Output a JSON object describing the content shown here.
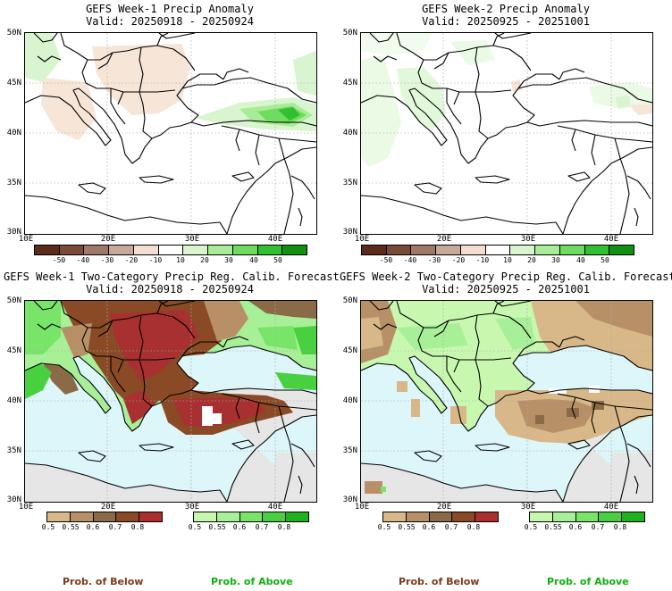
{
  "panels": {
    "tl": {
      "title": "GEFS Week-1 Precip Anomaly",
      "valid": "Valid: 20250918 - 20250924"
    },
    "tr": {
      "title": "GEFS Week-2 Precip Anomaly",
      "valid": "Valid: 20250925 - 20251001"
    },
    "bl": {
      "title": "GEFS Week-1 Two-Category Precip Reg. Calib. Forecast",
      "valid": "Valid: 20250918 - 20250924"
    },
    "br": {
      "title": "GEFS Week-2 Two-Category Precip Reg. Calib. Forecast",
      "valid": "Valid: 20250925 - 20251001"
    }
  },
  "axes": {
    "lat_labels": [
      "50N",
      "45N",
      "40N",
      "35N",
      "30N"
    ],
    "lon_labels": [
      "10E",
      "20E",
      "30E",
      "40E"
    ]
  },
  "anomaly_colorbar": {
    "ticks": [
      "-50",
      "-40",
      "-30",
      "-20",
      "-10",
      "10",
      "20",
      "30",
      "40",
      "50"
    ],
    "colors": [
      "#5a2a1a",
      "#7a4a38",
      "#a07868",
      "#c8a898",
      "#f2ddd0",
      "#ffffff",
      "#d8f5d0",
      "#a8ec98",
      "#6edc5e",
      "#30c030",
      "#109010"
    ]
  },
  "prob_colorbar": {
    "below_ticks": [
      "0.5",
      "0.55",
      "0.6",
      "0.7",
      "0.8"
    ],
    "below_colors": [
      "#d8b888",
      "#b89068",
      "#8b6a48",
      "#8a4a26",
      "#a83030"
    ],
    "above_ticks": [
      "0.5",
      "0.55",
      "0.6",
      "0.7",
      "0.8"
    ],
    "above_colors": [
      "#c8f8b0",
      "#a8f098",
      "#78e468",
      "#48d040",
      "#20b020"
    ]
  },
  "captions": {
    "below": "Prob. of Below",
    "above": "Prob. of Above"
  },
  "colors": {
    "sea_blue": "#dcf6fa",
    "no_data_gray": "#e6e6e6",
    "below_caption": "#7a3a1a",
    "above_caption": "#10b010"
  }
}
